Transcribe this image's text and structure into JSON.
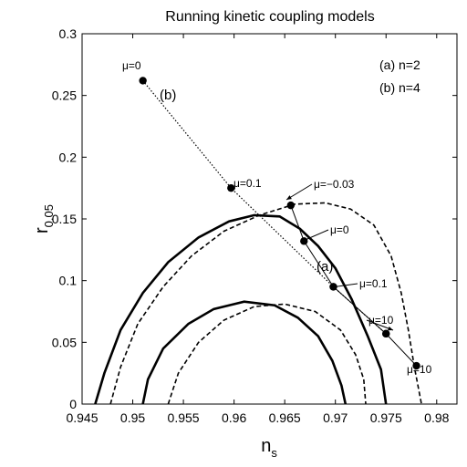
{
  "chart_data": {
    "type": "scatter",
    "title": "Running kinetic coupling models",
    "xlabel": "n",
    "xlabel_sub": "s",
    "ylabel": "r",
    "ylabel_sub": "0.05",
    "xlim": [
      0.945,
      0.982
    ],
    "ylim": [
      0,
      0.3
    ],
    "x_ticks": [
      0.945,
      0.95,
      0.955,
      0.96,
      0.965,
      0.97,
      0.975,
      0.98
    ],
    "x_tick_labels": [
      "0.945",
      "0.95",
      "0.955",
      "0.96",
      "0.965",
      "0.97",
      "0.975",
      "0.98"
    ],
    "y_ticks": [
      0,
      0.05,
      0.1,
      0.15,
      0.2,
      0.25,
      0.3
    ],
    "y_tick_labels": [
      "0",
      "0.05",
      "0.1",
      "0.15",
      "0.2",
      "0.25",
      "0.3"
    ],
    "grid": false,
    "legend": {
      "position": "top-right",
      "entries": [
        "(a) n=2",
        "(b) n=4"
      ]
    },
    "series": [
      {
        "name": "(a)",
        "line_style": "solid",
        "points": [
          {
            "x": 0.9656,
            "y": 0.161,
            "label": "μ=−0.03"
          },
          {
            "x": 0.9669,
            "y": 0.132,
            "label": "μ=0"
          },
          {
            "x": 0.9698,
            "y": 0.095,
            "label": "μ=0.1"
          },
          {
            "x": 0.975,
            "y": 0.057,
            "label": "μ=10"
          },
          {
            "x": 0.978,
            "y": 0.031,
            "label": "μ=10"
          }
        ]
      },
      {
        "name": "(b)",
        "line_style": "dotted",
        "points": [
          {
            "x": 0.951,
            "y": 0.262,
            "label": "μ=0"
          },
          {
            "x": 0.9597,
            "y": 0.175,
            "label": "μ=0.1"
          },
          {
            "x": 0.9698,
            "y": 0.095,
            "label": ""
          },
          {
            "x": 0.975,
            "y": 0.057,
            "label": ""
          }
        ]
      }
    ],
    "contours": [
      {
        "style": "solid",
        "points": [
          [
            0.9463,
            0
          ],
          [
            0.9472,
            0.025
          ],
          [
            0.9488,
            0.06
          ],
          [
            0.951,
            0.09
          ],
          [
            0.9535,
            0.115
          ],
          [
            0.9565,
            0.135
          ],
          [
            0.9595,
            0.148
          ],
          [
            0.962,
            0.153
          ],
          [
            0.9645,
            0.152
          ],
          [
            0.9665,
            0.142
          ],
          [
            0.9683,
            0.128
          ],
          [
            0.97,
            0.11
          ],
          [
            0.9716,
            0.085
          ],
          [
            0.9732,
            0.055
          ],
          [
            0.9745,
            0.028
          ],
          [
            0.975,
            0
          ]
        ]
      },
      {
        "style": "solid",
        "points": [
          [
            0.951,
            0
          ],
          [
            0.9515,
            0.02
          ],
          [
            0.953,
            0.045
          ],
          [
            0.9555,
            0.065
          ],
          [
            0.958,
            0.077
          ],
          [
            0.961,
            0.083
          ],
          [
            0.964,
            0.08
          ],
          [
            0.9663,
            0.07
          ],
          [
            0.9683,
            0.055
          ],
          [
            0.9697,
            0.035
          ],
          [
            0.9706,
            0.015
          ],
          [
            0.971,
            0
          ]
        ]
      },
      {
        "style": "dashed",
        "points": [
          [
            0.9478,
            0
          ],
          [
            0.9488,
            0.03
          ],
          [
            0.9505,
            0.065
          ],
          [
            0.953,
            0.095
          ],
          [
            0.9558,
            0.12
          ],
          [
            0.959,
            0.14
          ],
          [
            0.9625,
            0.153
          ],
          [
            0.966,
            0.162
          ],
          [
            0.969,
            0.163
          ],
          [
            0.9715,
            0.158
          ],
          [
            0.9738,
            0.145
          ],
          [
            0.9755,
            0.12
          ],
          [
            0.9765,
            0.09
          ],
          [
            0.9772,
            0.06
          ],
          [
            0.9778,
            0.03
          ],
          [
            0.9785,
            0
          ]
        ]
      },
      {
        "style": "dashed",
        "points": [
          [
            0.9535,
            0
          ],
          [
            0.9545,
            0.025
          ],
          [
            0.9565,
            0.05
          ],
          [
            0.959,
            0.068
          ],
          [
            0.962,
            0.079
          ],
          [
            0.965,
            0.081
          ],
          [
            0.968,
            0.075
          ],
          [
            0.9705,
            0.06
          ],
          [
            0.972,
            0.04
          ],
          [
            0.9728,
            0.02
          ],
          [
            0.973,
            0
          ]
        ]
      }
    ]
  }
}
